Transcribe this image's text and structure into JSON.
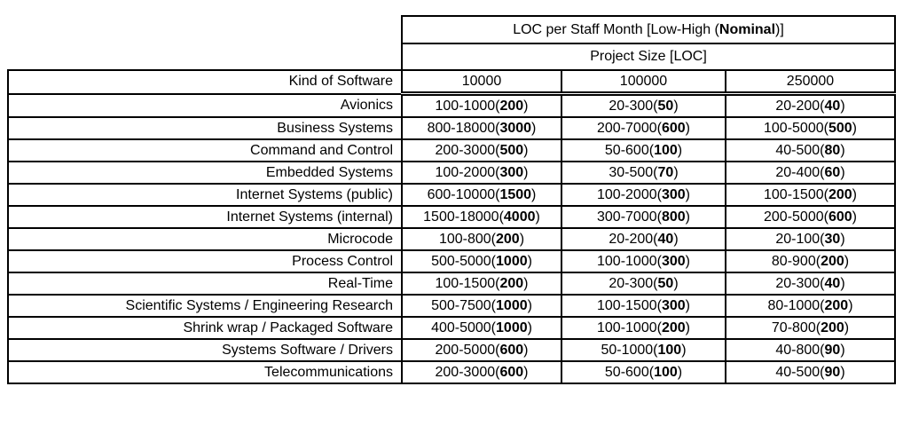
{
  "table": {
    "title": "LOC per Staff Month [Low-High (Nominal)]",
    "title_bold": "Nominal",
    "project_size_label": "Project Size [LOC]",
    "kind_of_software_label": "Kind of Software",
    "columns": [
      "10000",
      "100000",
      "250000"
    ],
    "rows": [
      {
        "label": "Avionics",
        "cells": [
          "100-1000(200)",
          "20-300(50)",
          "20-200(40)"
        ]
      },
      {
        "label": "Business Systems",
        "cells": [
          "800-18000(3000)",
          "200-7000(600)",
          "100-5000(500)"
        ]
      },
      {
        "label": "Command and Control",
        "cells": [
          "200-3000(500)",
          "50-600(100)",
          "40-500(80)"
        ]
      },
      {
        "label": "Embedded Systems",
        "cells": [
          "100-2000(300)",
          "30-500(70)",
          "20-400(60)"
        ]
      },
      {
        "label": "Internet Systems (public)",
        "cells": [
          "600-10000(1500)",
          "100-2000(300)",
          "100-1500(200)"
        ]
      },
      {
        "label": "Internet Systems (internal)",
        "cells": [
          "1500-18000(4000)",
          "300-7000(800)",
          "200-5000(600)"
        ]
      },
      {
        "label": "Microcode",
        "cells": [
          "100-800(200)",
          "20-200(40)",
          "20-100(30)"
        ]
      },
      {
        "label": "Process Control",
        "cells": [
          "500-5000(1000)",
          "100-1000(300)",
          "80-900(200)"
        ]
      },
      {
        "label": "Real-Time",
        "cells": [
          "100-1500(200)",
          "20-300(50)",
          "20-300(40)"
        ]
      },
      {
        "label": "Scientific Systems / Engineering Research",
        "cells": [
          "500-7500(1000)",
          "100-1500(300)",
          "80-1000(200)"
        ]
      },
      {
        "label": "Shrink wrap / Packaged Software",
        "cells": [
          "400-5000(1000)",
          "100-1000(200)",
          "70-800(200)"
        ]
      },
      {
        "label": "Systems Software / Drivers",
        "cells": [
          "200-5000(600)",
          "50-1000(100)",
          "40-800(90)"
        ]
      },
      {
        "label": "Telecommunications",
        "cells": [
          "200-3000(600)",
          "50-600(100)",
          "40-500(90)"
        ]
      }
    ],
    "text_color": "#000000",
    "background_color": "#ffffff",
    "border_color": "#000000"
  }
}
